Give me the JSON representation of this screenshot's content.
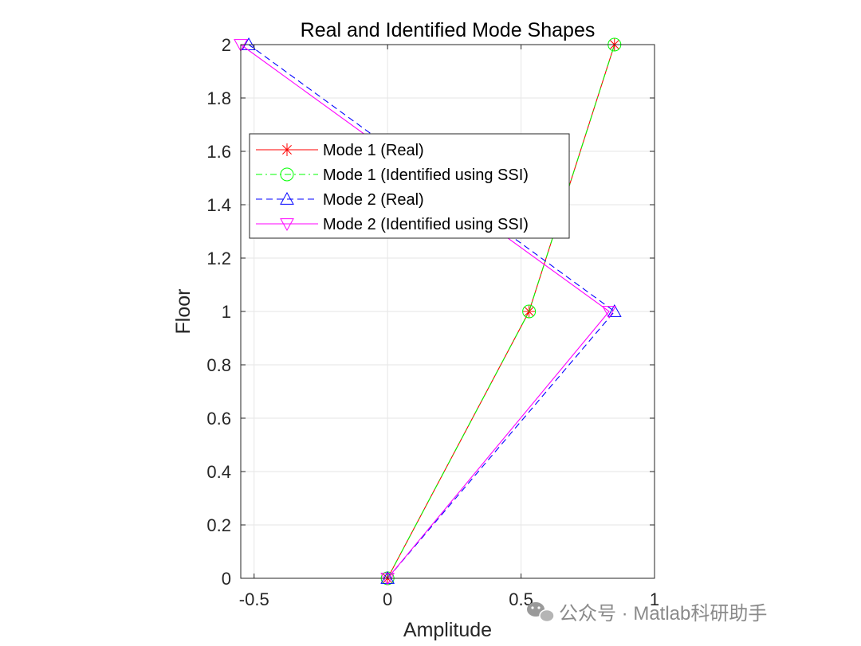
{
  "chart_data": {
    "type": "line",
    "title": "Real and Identified Mode Shapes",
    "xlabel": "Amplitude",
    "ylabel": "Floor",
    "xlim": [
      -0.55,
      1
    ],
    "ylim": [
      0,
      2
    ],
    "xticks": [
      -0.5,
      0,
      0.5,
      1
    ],
    "xtick_labels": [
      "-0.5",
      "0",
      "0.5",
      "1"
    ],
    "yticks": [
      0,
      0.2,
      0.4,
      0.6,
      0.8,
      1,
      1.2,
      1.4,
      1.6,
      1.8,
      2
    ],
    "ytick_labels": [
      "0",
      "0.2",
      "0.4",
      "0.6",
      "0.8",
      "1",
      "1.2",
      "1.4",
      "1.6",
      "1.8",
      "2"
    ],
    "grid": true,
    "legend_position": "upper-left",
    "series": [
      {
        "name": "Mode 1 (Real)",
        "x": [
          0,
          0.53,
          0.85
        ],
        "y": [
          0,
          1,
          2
        ],
        "color": "#ff0000",
        "dash": "solid",
        "marker": "asterisk"
      },
      {
        "name": "Mode 1 (Identified using SSI)",
        "x": [
          0,
          0.53,
          0.85
        ],
        "y": [
          0,
          1,
          2
        ],
        "color": "#00ff00",
        "dash": "dashdot",
        "marker": "circle"
      },
      {
        "name": "Mode 2 (Real)",
        "x": [
          0,
          0.85,
          -0.52
        ],
        "y": [
          0,
          1,
          2
        ],
        "color": "#0000ff",
        "dash": "dashed",
        "marker": "triangle-up"
      },
      {
        "name": "Mode 2 (Identified using SSI)",
        "x": [
          0,
          0.83,
          -0.55
        ],
        "y": [
          0,
          1,
          2
        ],
        "color": "#ff00ff",
        "dash": "solid",
        "marker": "triangle-down"
      }
    ]
  },
  "watermark": {
    "text": "公众号 · Matlab科研助手",
    "icon": "wechat-icon"
  }
}
